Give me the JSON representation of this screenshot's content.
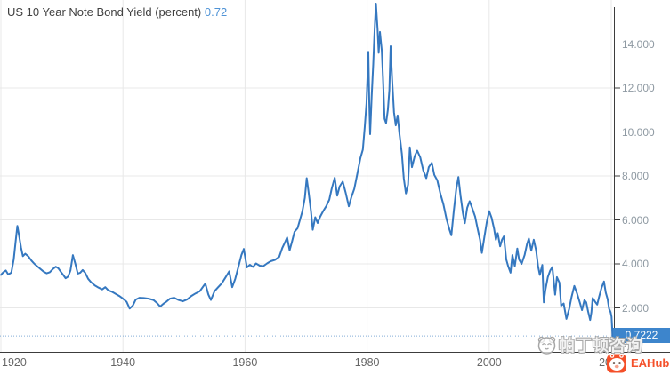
{
  "header": {
    "title": "US 10 Year Note Bond Yield (percent)",
    "current_value": "0.72"
  },
  "chart_data": {
    "type": "line",
    "title": "US 10 Year Note Bond Yield (percent)",
    "xlabel": "year",
    "ylabel": "percent",
    "xlim": [
      1920,
      2020.5
    ],
    "ylim": [
      0,
      16
    ],
    "grid": true,
    "legend": "none",
    "line_color": "#3578c0",
    "x_ticks": [
      {
        "year": 1920,
        "label": "1920"
      },
      {
        "year": 1940,
        "label": "1940"
      },
      {
        "year": 1960,
        "label": "1960"
      },
      {
        "year": 1980,
        "label": "1980"
      },
      {
        "year": 2000,
        "label": "2000"
      },
      {
        "year": 2020,
        "label": "2020"
      }
    ],
    "y_ticks": [
      {
        "value": 2,
        "label": "2.000"
      },
      {
        "value": 4,
        "label": "4.000"
      },
      {
        "value": 6,
        "label": "6.000"
      },
      {
        "value": 8,
        "label": "8.000"
      },
      {
        "value": 10,
        "label": "10.000"
      },
      {
        "value": 12,
        "label": "12.000"
      },
      {
        "value": 14,
        "label": "14.000"
      }
    ],
    "last_value": 0.7222,
    "last_value_label": "0.7222",
    "series": [
      {
        "name": "US 10 Year Note Bond Yield (percent)",
        "points": [
          [
            1920.0,
            3.5
          ],
          [
            1920.4,
            3.62
          ],
          [
            1920.8,
            3.7
          ],
          [
            1921.2,
            3.52
          ],
          [
            1921.7,
            3.6
          ],
          [
            1922.1,
            4.2
          ],
          [
            1922.4,
            5.0
          ],
          [
            1922.7,
            5.73
          ],
          [
            1923.0,
            5.25
          ],
          [
            1923.3,
            4.75
          ],
          [
            1923.6,
            4.35
          ],
          [
            1924.0,
            4.46
          ],
          [
            1924.5,
            4.34
          ],
          [
            1925.0,
            4.15
          ],
          [
            1925.5,
            4.0
          ],
          [
            1926.0,
            3.88
          ],
          [
            1926.5,
            3.76
          ],
          [
            1927.0,
            3.65
          ],
          [
            1927.5,
            3.57
          ],
          [
            1928.0,
            3.62
          ],
          [
            1928.5,
            3.76
          ],
          [
            1929.0,
            3.87
          ],
          [
            1929.4,
            3.8
          ],
          [
            1929.8,
            3.65
          ],
          [
            1930.2,
            3.5
          ],
          [
            1930.6,
            3.35
          ],
          [
            1931.0,
            3.42
          ],
          [
            1931.4,
            3.7
          ],
          [
            1931.8,
            4.4
          ],
          [
            1932.2,
            4.0
          ],
          [
            1932.6,
            3.56
          ],
          [
            1933.0,
            3.6
          ],
          [
            1933.4,
            3.72
          ],
          [
            1933.8,
            3.6
          ],
          [
            1934.3,
            3.32
          ],
          [
            1934.8,
            3.16
          ],
          [
            1935.4,
            3.02
          ],
          [
            1936.0,
            2.92
          ],
          [
            1936.6,
            2.84
          ],
          [
            1937.1,
            2.94
          ],
          [
            1937.6,
            2.8
          ],
          [
            1938.2,
            2.73
          ],
          [
            1938.8,
            2.64
          ],
          [
            1939.4,
            2.54
          ],
          [
            1940.0,
            2.42
          ],
          [
            1940.6,
            2.28
          ],
          [
            1941.1,
            1.97
          ],
          [
            1941.6,
            2.1
          ],
          [
            1942.1,
            2.38
          ],
          [
            1942.7,
            2.46
          ],
          [
            1943.4,
            2.45
          ],
          [
            1944.2,
            2.42
          ],
          [
            1945.0,
            2.36
          ],
          [
            1945.6,
            2.22
          ],
          [
            1946.1,
            2.06
          ],
          [
            1946.6,
            2.18
          ],
          [
            1947.1,
            2.28
          ],
          [
            1947.7,
            2.42
          ],
          [
            1948.4,
            2.46
          ],
          [
            1949.1,
            2.36
          ],
          [
            1949.8,
            2.3
          ],
          [
            1950.5,
            2.38
          ],
          [
            1951.2,
            2.54
          ],
          [
            1951.9,
            2.66
          ],
          [
            1952.6,
            2.76
          ],
          [
            1953.2,
            3.0
          ],
          [
            1953.5,
            3.1
          ],
          [
            1954.0,
            2.6
          ],
          [
            1954.4,
            2.36
          ],
          [
            1955.0,
            2.76
          ],
          [
            1955.6,
            2.94
          ],
          [
            1956.2,
            3.12
          ],
          [
            1956.8,
            3.38
          ],
          [
            1957.4,
            3.66
          ],
          [
            1957.9,
            2.94
          ],
          [
            1958.4,
            3.32
          ],
          [
            1958.9,
            3.86
          ],
          [
            1959.4,
            4.4
          ],
          [
            1959.8,
            4.68
          ],
          [
            1960.3,
            3.84
          ],
          [
            1960.8,
            3.96
          ],
          [
            1961.3,
            3.86
          ],
          [
            1961.8,
            4.02
          ],
          [
            1962.4,
            3.92
          ],
          [
            1963.0,
            3.9
          ],
          [
            1963.6,
            4.02
          ],
          [
            1964.2,
            4.12
          ],
          [
            1964.9,
            4.18
          ],
          [
            1965.6,
            4.32
          ],
          [
            1966.1,
            4.72
          ],
          [
            1966.6,
            5.02
          ],
          [
            1966.9,
            5.2
          ],
          [
            1967.3,
            4.62
          ],
          [
            1967.7,
            5.02
          ],
          [
            1968.1,
            5.46
          ],
          [
            1968.6,
            5.62
          ],
          [
            1969.0,
            6.0
          ],
          [
            1969.4,
            6.4
          ],
          [
            1969.8,
            7.0
          ],
          [
            1970.1,
            7.9
          ],
          [
            1970.4,
            7.3
          ],
          [
            1970.8,
            6.4
          ],
          [
            1971.1,
            5.55
          ],
          [
            1971.5,
            6.12
          ],
          [
            1971.9,
            5.86
          ],
          [
            1972.3,
            6.14
          ],
          [
            1972.8,
            6.4
          ],
          [
            1973.3,
            6.62
          ],
          [
            1973.8,
            6.92
          ],
          [
            1974.2,
            7.42
          ],
          [
            1974.7,
            7.92
          ],
          [
            1975.1,
            7.1
          ],
          [
            1975.5,
            7.52
          ],
          [
            1976.0,
            7.74
          ],
          [
            1976.5,
            7.22
          ],
          [
            1977.0,
            6.62
          ],
          [
            1977.4,
            7.02
          ],
          [
            1977.9,
            7.42
          ],
          [
            1978.4,
            8.1
          ],
          [
            1978.9,
            8.82
          ],
          [
            1979.3,
            9.2
          ],
          [
            1979.6,
            10.2
          ],
          [
            1979.9,
            11.3
          ],
          [
            1980.1,
            12.8
          ],
          [
            1980.2,
            13.65
          ],
          [
            1980.35,
            11.4
          ],
          [
            1980.5,
            9.9
          ],
          [
            1980.75,
            11.6
          ],
          [
            1981.0,
            13.1
          ],
          [
            1981.2,
            14.4
          ],
          [
            1981.45,
            15.84
          ],
          [
            1981.7,
            14.7
          ],
          [
            1981.9,
            13.6
          ],
          [
            1982.1,
            14.55
          ],
          [
            1982.4,
            13.7
          ],
          [
            1982.6,
            12.5
          ],
          [
            1982.85,
            10.6
          ],
          [
            1983.1,
            10.4
          ],
          [
            1983.4,
            11.0
          ],
          [
            1983.65,
            11.9
          ],
          [
            1983.85,
            13.9
          ],
          [
            1984.1,
            12.4
          ],
          [
            1984.4,
            10.9
          ],
          [
            1984.7,
            10.3
          ],
          [
            1985.0,
            10.75
          ],
          [
            1985.3,
            9.9
          ],
          [
            1985.7,
            9.0
          ],
          [
            1986.0,
            7.9
          ],
          [
            1986.35,
            7.2
          ],
          [
            1986.7,
            7.6
          ],
          [
            1987.0,
            9.3
          ],
          [
            1987.35,
            8.4
          ],
          [
            1987.8,
            8.9
          ],
          [
            1988.2,
            9.15
          ],
          [
            1988.7,
            8.85
          ],
          [
            1989.2,
            8.25
          ],
          [
            1989.7,
            7.9
          ],
          [
            1990.1,
            8.4
          ],
          [
            1990.6,
            8.6
          ],
          [
            1991.0,
            8.05
          ],
          [
            1991.5,
            7.8
          ],
          [
            1992.0,
            7.2
          ],
          [
            1992.5,
            6.7
          ],
          [
            1993.0,
            6.05
          ],
          [
            1993.5,
            5.55
          ],
          [
            1993.8,
            5.3
          ],
          [
            1994.2,
            6.4
          ],
          [
            1994.6,
            7.4
          ],
          [
            1994.95,
            7.95
          ],
          [
            1995.3,
            7.1
          ],
          [
            1995.7,
            6.3
          ],
          [
            1996.0,
            5.85
          ],
          [
            1996.4,
            6.55
          ],
          [
            1996.8,
            6.85
          ],
          [
            1997.2,
            6.55
          ],
          [
            1997.7,
            6.15
          ],
          [
            1998.1,
            5.6
          ],
          [
            1998.5,
            5.1
          ],
          [
            1998.8,
            4.5
          ],
          [
            1999.2,
            5.2
          ],
          [
            1999.6,
            5.9
          ],
          [
            2000.0,
            6.4
          ],
          [
            2000.4,
            6.1
          ],
          [
            2000.8,
            5.6
          ],
          [
            2001.1,
            5.1
          ],
          [
            2001.4,
            5.4
          ],
          [
            2001.8,
            4.8
          ],
          [
            2002.1,
            5.1
          ],
          [
            2002.4,
            5.25
          ],
          [
            2002.8,
            4.2
          ],
          [
            2003.1,
            3.9
          ],
          [
            2003.5,
            3.6
          ],
          [
            2003.8,
            4.4
          ],
          [
            2004.2,
            3.9
          ],
          [
            2004.6,
            4.7
          ],
          [
            2004.9,
            4.2
          ],
          [
            2005.3,
            4.0
          ],
          [
            2005.8,
            4.4
          ],
          [
            2006.2,
            4.9
          ],
          [
            2006.5,
            5.15
          ],
          [
            2006.9,
            4.6
          ],
          [
            2007.3,
            5.1
          ],
          [
            2007.7,
            4.6
          ],
          [
            2008.0,
            3.9
          ],
          [
            2008.3,
            3.5
          ],
          [
            2008.7,
            3.95
          ],
          [
            2008.95,
            2.25
          ],
          [
            2009.2,
            2.8
          ],
          [
            2009.6,
            3.4
          ],
          [
            2010.0,
            3.7
          ],
          [
            2010.35,
            3.85
          ],
          [
            2010.8,
            2.6
          ],
          [
            2011.1,
            3.4
          ],
          [
            2011.5,
            3.15
          ],
          [
            2011.8,
            2.1
          ],
          [
            2012.2,
            2.2
          ],
          [
            2012.65,
            1.5
          ],
          [
            2013.1,
            1.95
          ],
          [
            2013.5,
            2.5
          ],
          [
            2013.95,
            3.0
          ],
          [
            2014.4,
            2.65
          ],
          [
            2014.9,
            2.2
          ],
          [
            2015.2,
            1.9
          ],
          [
            2015.6,
            2.35
          ],
          [
            2015.9,
            2.25
          ],
          [
            2016.2,
            1.85
          ],
          [
            2016.55,
            1.45
          ],
          [
            2016.75,
            1.8
          ],
          [
            2016.95,
            2.45
          ],
          [
            2017.3,
            2.3
          ],
          [
            2017.7,
            2.15
          ],
          [
            2018.0,
            2.5
          ],
          [
            2018.4,
            2.9
          ],
          [
            2018.8,
            3.2
          ],
          [
            2019.1,
            2.7
          ],
          [
            2019.4,
            2.4
          ],
          [
            2019.65,
            1.95
          ],
          [
            2019.9,
            1.8
          ],
          [
            2020.05,
            1.6
          ],
          [
            2020.15,
            1.1
          ],
          [
            2020.2,
            0.7222
          ]
        ]
      }
    ]
  },
  "badge": {
    "label": "0.7222",
    "background": "#3d85cc",
    "text_color": "#ffffff"
  },
  "current_line": {
    "value": 0.7222,
    "style": "dotted",
    "color": "#85aed6"
  },
  "colors": {
    "line": "#3578c0",
    "grid": "#e8e8e8",
    "axis": "#3c3c3c",
    "title_value": "#4f93d6"
  },
  "watermark": {
    "text": "帕丁顿咨询"
  },
  "eahub": {
    "label": "EAHub",
    "color": "#f4502a"
  }
}
